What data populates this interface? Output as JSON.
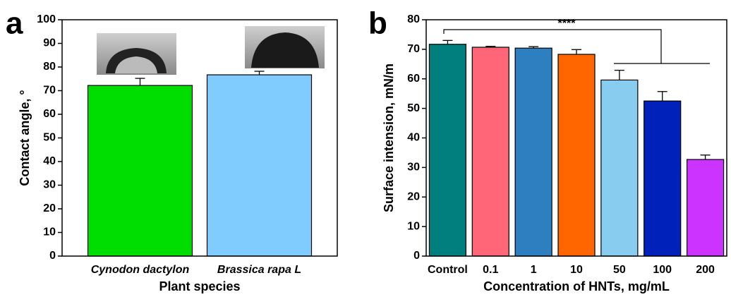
{
  "chart_data": [
    {
      "type": "bar",
      "panel": "a",
      "xlabel": "Plant species",
      "ylabel": "Contact angle, °",
      "categories": [
        "Cynodon dactylon",
        "Brassica rapa L"
      ],
      "values": [
        72.2,
        76.7
      ],
      "errors": [
        3.0,
        1.5
      ],
      "colors": [
        "#00dd00",
        "#80ccff"
      ],
      "ylim": [
        0,
        100
      ],
      "yticks": [
        0,
        10,
        20,
        30,
        40,
        50,
        60,
        70,
        80,
        90,
        100
      ]
    },
    {
      "type": "bar",
      "panel": "b",
      "xlabel": "Concentration of HNTs, mg/mL",
      "ylabel": "Surface intension, mN/m",
      "annotation": "****",
      "categories": [
        "Control",
        "0.1",
        "1",
        "10",
        "50",
        "100",
        "200"
      ],
      "values": [
        71.7,
        70.7,
        70.4,
        68.3,
        59.6,
        52.5,
        32.7
      ],
      "errors": [
        1.3,
        0.3,
        0.5,
        1.6,
        3.3,
        3.2,
        1.5
      ],
      "colors": [
        "#007f7f",
        "#ff6677",
        "#2e7fbf",
        "#ff6600",
        "#88ccf0",
        "#0022bb",
        "#cc33ff"
      ],
      "ylim": [
        0,
        80
      ],
      "yticks": [
        0,
        10,
        20,
        30,
        40,
        50,
        60,
        70,
        80
      ]
    }
  ]
}
